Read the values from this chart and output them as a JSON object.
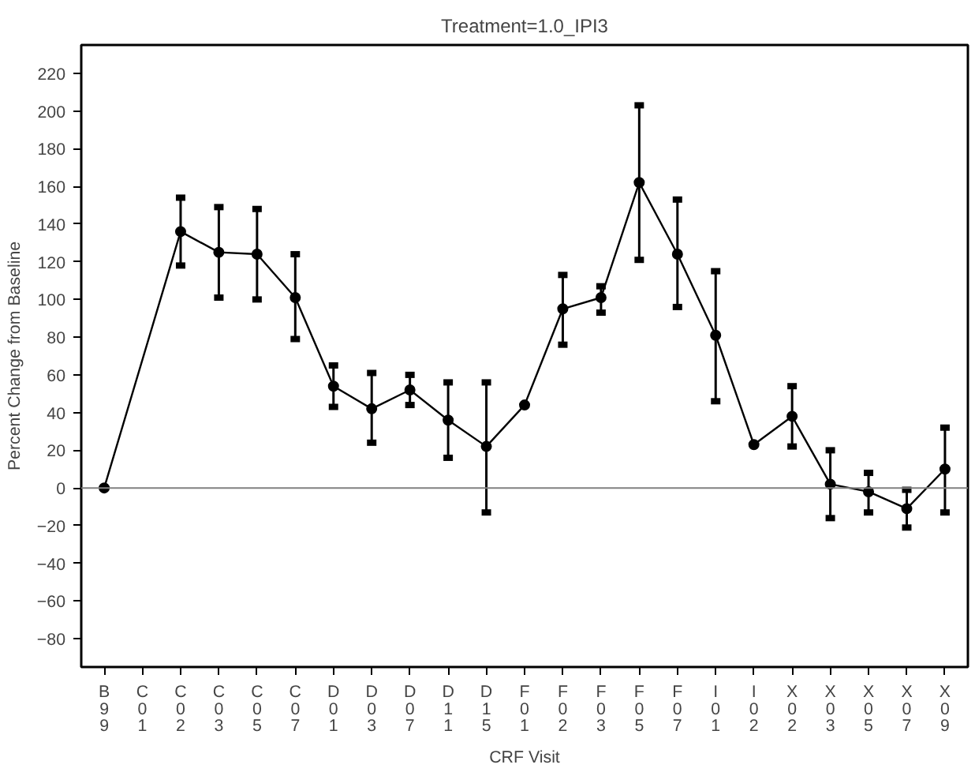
{
  "chart_data": {
    "type": "line",
    "title": "Treatment=1.0_IPI3",
    "xlabel": "CRF Visit",
    "ylabel": "Percent Change from Baseline",
    "categories": [
      "B99",
      "C01",
      "C02",
      "C03",
      "C05",
      "C07",
      "D01",
      "D03",
      "D07",
      "D11",
      "D15",
      "F01",
      "F02",
      "F03",
      "F05",
      "F07",
      "I01",
      "I02",
      "X02",
      "X03",
      "X05",
      "X07",
      "X09"
    ],
    "series": [
      {
        "color": "#000000",
        "values": [
          0,
          null,
          136,
          125,
          124,
          101,
          54,
          42,
          52,
          36,
          22,
          44,
          95,
          101,
          162,
          124,
          81,
          23,
          38,
          2,
          -2,
          -11,
          10
        ],
        "errors": [
          null,
          null,
          [
            118,
            154
          ],
          [
            101,
            149
          ],
          [
            100,
            148
          ],
          [
            79,
            124
          ],
          [
            43,
            65
          ],
          [
            24,
            61
          ],
          [
            44,
            60
          ],
          [
            16,
            56
          ],
          [
            -13,
            56
          ],
          null,
          [
            76,
            113
          ],
          [
            93,
            107
          ],
          [
            121,
            203
          ],
          [
            96,
            153
          ],
          [
            46,
            115
          ],
          null,
          [
            22,
            54
          ],
          [
            -16,
            20
          ],
          [
            -13,
            8
          ],
          [
            -21,
            -1
          ],
          [
            -13,
            32
          ]
        ]
      }
    ],
    "ylim": [
      -95,
      235
    ],
    "yticks": [
      -80,
      -60,
      -40,
      -20,
      0,
      20,
      40,
      60,
      80,
      100,
      120,
      140,
      160,
      180,
      200,
      220
    ],
    "ref_lines": [
      {
        "axis": "y",
        "value": 0,
        "color": "#808080"
      }
    ],
    "marker": "circle",
    "line_style": "solid",
    "grid": false
  }
}
